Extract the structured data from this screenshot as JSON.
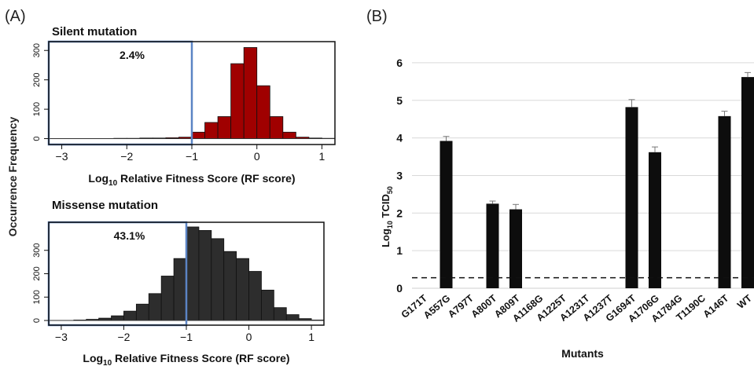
{
  "panel_a": {
    "label": "(A)",
    "ylabel_shared": "Occurrence Frequency"
  },
  "panel_b": {
    "label": "(B)"
  },
  "chart_data": [
    {
      "type": "bar",
      "title": "Silent mutation",
      "xlabel_prefix": "Log",
      "xlabel_sub": "10",
      "xlabel_suffix": " Relative Fitness Score (RF score)",
      "xlim": [
        -3.2,
        1.2
      ],
      "ylim": [
        -20,
        330
      ],
      "xticks": [
        -3,
        -2,
        -1,
        0,
        1
      ],
      "yticks": [
        0,
        100,
        200,
        300
      ],
      "bin_width": 0.2,
      "bin_starts": [
        -3.2,
        -3.0,
        -2.8,
        -2.6,
        -2.4,
        -2.2,
        -2.0,
        -1.8,
        -1.6,
        -1.4,
        -1.2,
        -1.0,
        -0.8,
        -0.6,
        -0.4,
        -0.2,
        0.0,
        0.2,
        0.4,
        0.6,
        0.8,
        1.0
      ],
      "values": [
        0,
        0,
        0,
        0,
        0,
        1,
        1,
        2,
        2,
        3,
        5,
        22,
        55,
        75,
        255,
        310,
        180,
        75,
        22,
        5,
        2,
        1
      ],
      "bar_color": "#a00000",
      "highlight": {
        "x_from": -3.2,
        "x_to": -1.0,
        "label": "2.4%",
        "color": "#5b84c4"
      }
    },
    {
      "type": "bar",
      "title": "Missense mutation",
      "xlabel_prefix": "Log",
      "xlabel_sub": "10",
      "xlabel_suffix": " Relative Fitness Score (RF score)",
      "xlim": [
        -3.2,
        1.2
      ],
      "ylim": [
        -20,
        420
      ],
      "xticks": [
        -3,
        -2,
        -1,
        0,
        1
      ],
      "yticks": [
        0,
        100,
        200,
        300
      ],
      "bin_width": 0.2,
      "bin_starts": [
        -3.2,
        -3.0,
        -2.8,
        -2.6,
        -2.4,
        -2.2,
        -2.0,
        -1.8,
        -1.6,
        -1.4,
        -1.2,
        -1.0,
        -0.8,
        -0.6,
        -0.4,
        -0.2,
        0.0,
        0.2,
        0.4,
        0.6,
        0.8,
        1.0
      ],
      "values": [
        0,
        0,
        2,
        5,
        10,
        20,
        40,
        70,
        115,
        190,
        265,
        400,
        385,
        350,
        295,
        265,
        210,
        130,
        55,
        25,
        8,
        2
      ],
      "bar_color": "#2d2d2d",
      "highlight": {
        "x_from": -3.2,
        "x_to": -1.0,
        "label": "43.1%",
        "color": "#5b84c4"
      }
    },
    {
      "type": "bar",
      "xlabel": "Mutants",
      "ylabel_prefix": "Log",
      "ylabel_sub": "10",
      "ylabel_suffix": " TCID",
      "ylabel_sub2": "50",
      "ylim": [
        0,
        6.5
      ],
      "yticks": [
        0,
        1,
        2,
        3,
        4,
        5,
        6
      ],
      "grid": true,
      "categories": [
        "G171T",
        "A557G",
        "A797T",
        "A800T",
        "A809T",
        "A1168G",
        "A1225T",
        "A1231T",
        "A1237T",
        "G1694T",
        "A1706G",
        "A1784G",
        "T1190C",
        "A146T",
        "WT"
      ],
      "values": [
        0,
        3.92,
        0,
        2.25,
        2.1,
        0,
        0,
        0,
        0,
        4.82,
        3.62,
        0,
        0,
        4.58,
        5.62
      ],
      "errors": [
        0,
        0.12,
        0,
        0.07,
        0.13,
        0,
        0,
        0,
        0,
        0.2,
        0.14,
        0,
        0,
        0.13,
        0.12
      ],
      "detection_limit": 0.28,
      "bar_color": "#0d0d0d"
    }
  ]
}
